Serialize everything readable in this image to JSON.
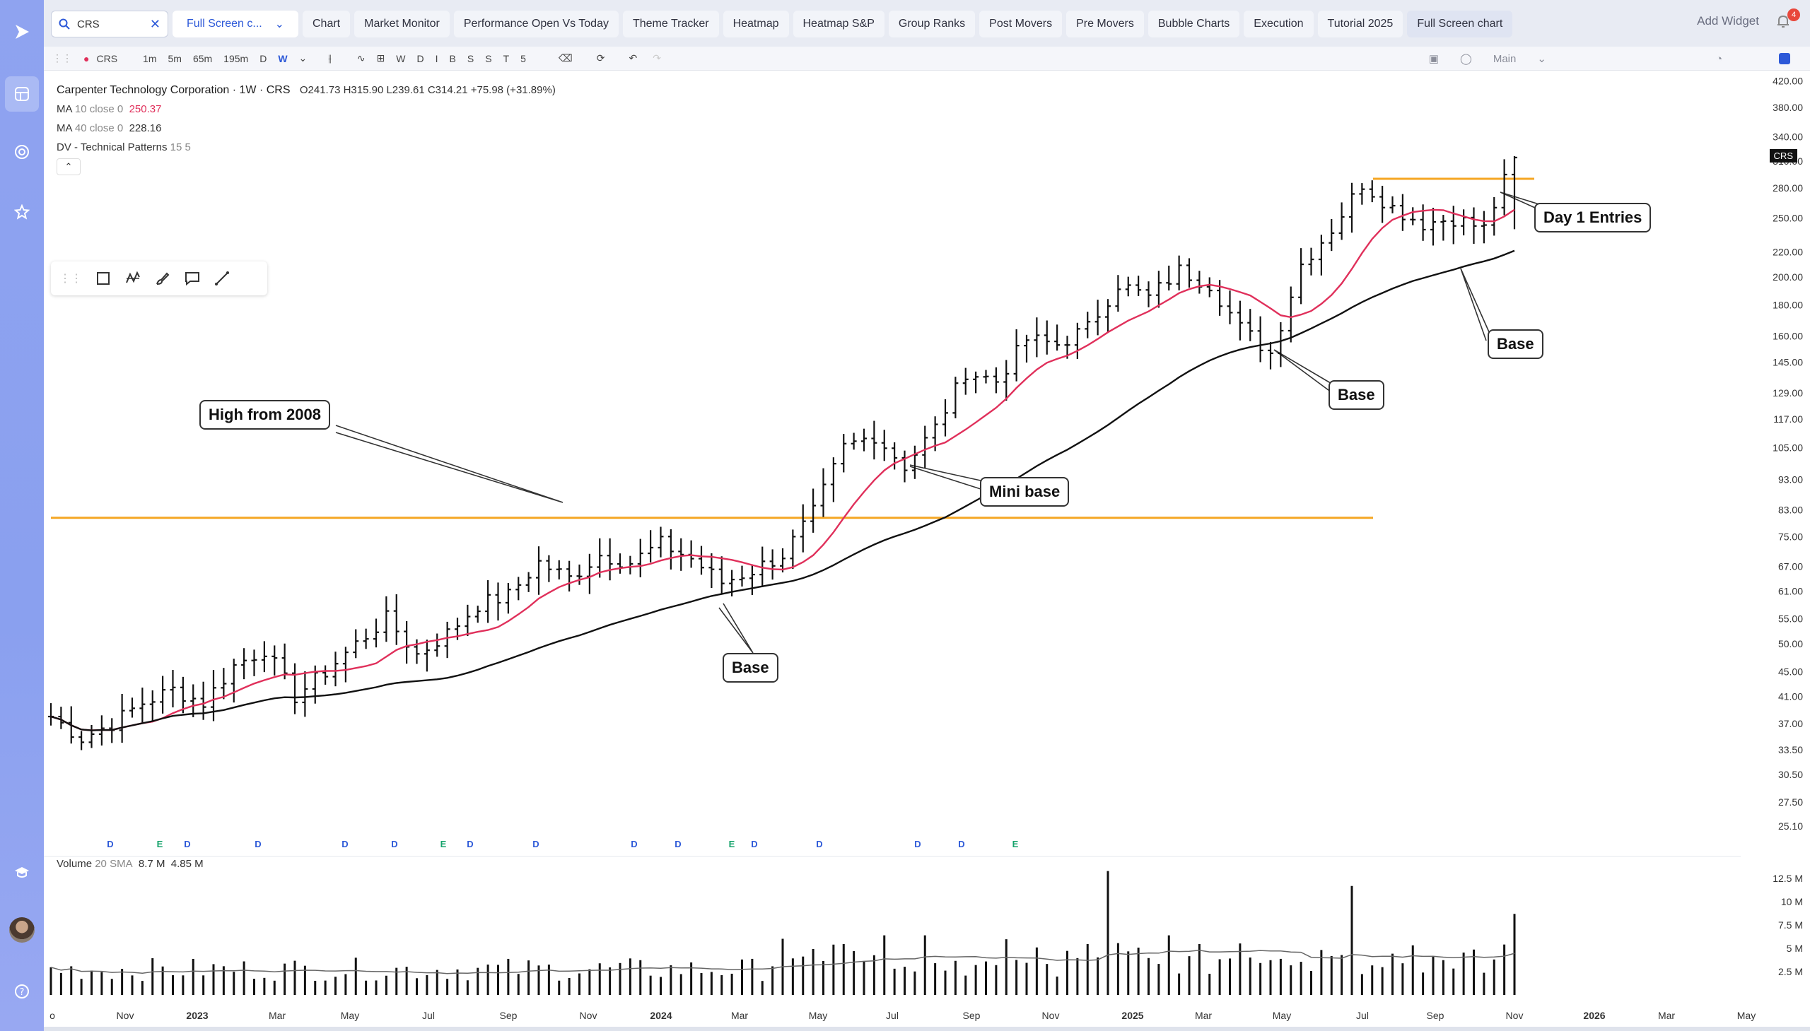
{
  "search": {
    "value": "CRS"
  },
  "layout_select": {
    "label": "Full Screen c..."
  },
  "tabs": [
    {
      "label": "Chart"
    },
    {
      "label": "Market Monitor"
    },
    {
      "label": "Performance Open Vs Today"
    },
    {
      "label": "Theme Tracker"
    },
    {
      "label": "Heatmap"
    },
    {
      "label": "Heatmap S&P"
    },
    {
      "label": "Group Ranks"
    },
    {
      "label": "Post Movers"
    },
    {
      "label": "Pre Movers"
    },
    {
      "label": "Bubble Charts"
    },
    {
      "label": "Execution"
    },
    {
      "label": "Tutorial 2025"
    },
    {
      "label": "Full Screen chart"
    }
  ],
  "add_widget": "Add Widget",
  "notification_count": "4",
  "toolbar": {
    "symbol": "CRS",
    "intervals": [
      "1m",
      "5m",
      "65m",
      "195m",
      "D",
      "W"
    ],
    "periods": [
      "W",
      "D",
      "I",
      "B",
      "S",
      "S",
      "T",
      "5"
    ],
    "main_label": "Main"
  },
  "legend": {
    "title": "Carpenter Technology Corporation · 1W · CRS",
    "ohlc": "O241.73  H315.90  L239.61  C314.21  +75.98 (+31.89%)",
    "ma10_name": "MA",
    "ma10_params": "10 close 0",
    "ma10_value": "250.37",
    "ma40_name": "MA",
    "ma40_params": "40 close 0",
    "ma40_value": "228.16",
    "dv_name": "DV - Technical Patterns",
    "dv_params": "15 5"
  },
  "volume_legend": {
    "name": "Volume",
    "params": "20 SMA",
    "v1": "8.7 M",
    "v2": "4.85 M"
  },
  "price_tag": "CRS",
  "callouts": {
    "high2008": "High from 2008",
    "base1": "Base",
    "mini_base": "Mini base",
    "base2": "Base",
    "base3": "Base",
    "day1": "Day 1 Entries"
  },
  "colors": {
    "ma10": "#e0305b",
    "ma40": "#111111",
    "level": "#f5a623",
    "earnings": "#16a36b",
    "dividend": "#2d59d8"
  },
  "chart_data": {
    "type": "bar",
    "symbol": "CRS",
    "timeframe": "1W",
    "y_scale": "log",
    "price_axis_ticks": [
      "420.00",
      "380.00",
      "340.00",
      "310.00",
      "280.00",
      "250.00",
      "220.00",
      "200.00",
      "180.00",
      "160.00",
      "145.00",
      "129.00",
      "117.00",
      "105.00",
      "93.00",
      "83.00",
      "75.00",
      "67.00",
      "61.00",
      "55.00",
      "50.00",
      "45.00",
      "41.00",
      "37.00",
      "33.50",
      "30.50",
      "27.50",
      "25.10"
    ],
    "volume_axis_ticks": [
      "12.5 M",
      "10 M",
      "7.5 M",
      "5 M",
      "2.5 M"
    ],
    "x_axis_ticks": [
      "o",
      "Nov",
      "2023",
      "Mar",
      "May",
      "Jul",
      "Sep",
      "Nov",
      "2024",
      "Mar",
      "May",
      "Jul",
      "Sep",
      "Nov",
      "2025",
      "Mar",
      "May",
      "Jul",
      "Sep",
      "Nov",
      "2026",
      "Mar",
      "May"
    ],
    "event_markers": [
      "D",
      "E",
      "D",
      "D",
      "D",
      "D",
      "E",
      "D",
      "D",
      "D",
      "D",
      "E",
      "D",
      "D",
      "D",
      "D",
      "E"
    ],
    "horizontal_levels": [
      80.5,
      290
    ],
    "close_path": [
      [
        0,
        38
      ],
      [
        3,
        35
      ],
      [
        6,
        37
      ],
      [
        9,
        40
      ],
      [
        12,
        42
      ],
      [
        15,
        40
      ],
      [
        18,
        46
      ],
      [
        21,
        49
      ],
      [
        24,
        41
      ],
      [
        27,
        45
      ],
      [
        30,
        50
      ],
      [
        33,
        55
      ],
      [
        36,
        48
      ],
      [
        39,
        52
      ],
      [
        42,
        58
      ],
      [
        45,
        60
      ],
      [
        48,
        68
      ],
      [
        51,
        64
      ],
      [
        54,
        70
      ],
      [
        57,
        68
      ],
      [
        60,
        73
      ],
      [
        63,
        69
      ],
      [
        66,
        63
      ],
      [
        69,
        66
      ],
      [
        72,
        70
      ],
      [
        75,
        82
      ],
      [
        78,
        105
      ],
      [
        81,
        110
      ],
      [
        84,
        98
      ],
      [
        87,
        113
      ],
      [
        90,
        140
      ],
      [
        93,
        135
      ],
      [
        96,
        158
      ],
      [
        99,
        155
      ],
      [
        102,
        165
      ],
      [
        105,
        195
      ],
      [
        108,
        185
      ],
      [
        111,
        205
      ],
      [
        114,
        195
      ],
      [
        117,
        165
      ],
      [
        120,
        150
      ],
      [
        123,
        210
      ],
      [
        126,
        240
      ],
      [
        129,
        285
      ],
      [
        132,
        260
      ],
      [
        135,
        245
      ],
      [
        138,
        250
      ],
      [
        141,
        240
      ],
      [
        144,
        314.21
      ]
    ]
  }
}
